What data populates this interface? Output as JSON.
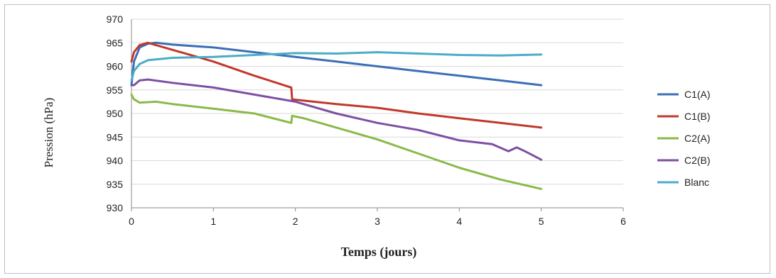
{
  "chart_data": {
    "type": "line",
    "title": "",
    "xlabel": "Temps (jours)",
    "ylabel": "Pression (hPa)",
    "xlim": [
      0,
      6
    ],
    "ylim": [
      930,
      970
    ],
    "xticks": [
      "0",
      "1",
      "2",
      "3",
      "4",
      "5",
      "6"
    ],
    "yticks": [
      "930",
      "935",
      "940",
      "945",
      "950",
      "955",
      "960",
      "965",
      "970"
    ],
    "grid": "horizontal",
    "legend_position": "right",
    "series": [
      {
        "name": "C1(A)",
        "color": "#3b6fb6",
        "x": [
          0,
          0.03,
          0.1,
          0.2,
          0.3,
          0.5,
          1.0,
          1.5,
          2.0,
          2.5,
          3.0,
          3.5,
          4.0,
          4.5,
          5.0
        ],
        "y": [
          956,
          961,
          964,
          964.8,
          965,
          964.6,
          964,
          963,
          962,
          961,
          960,
          959,
          958,
          957,
          956
        ]
      },
      {
        "name": "C1(B)",
        "color": "#c0392b",
        "x": [
          0,
          0.03,
          0.1,
          0.2,
          0.4,
          1.0,
          1.5,
          1.95,
          1.96,
          2.5,
          3.0,
          3.5,
          4.0,
          4.5,
          5.0
        ],
        "y": [
          961,
          963,
          964.5,
          965,
          964,
          961,
          958,
          955.5,
          953,
          952,
          951.2,
          950,
          949,
          948,
          947
        ]
      },
      {
        "name": "C2(A)",
        "color": "#8ab94a",
        "x": [
          0,
          0.03,
          0.1,
          0.3,
          0.5,
          1.0,
          1.5,
          1.95,
          1.96,
          2.1,
          2.5,
          3.0,
          3.5,
          4.0,
          4.5,
          5.0
        ],
        "y": [
          954,
          953,
          952.3,
          952.5,
          952,
          951,
          950,
          948,
          949.5,
          949,
          947,
          944.5,
          941.5,
          938.5,
          936,
          934
        ]
      },
      {
        "name": "C2(B)",
        "color": "#7d4fa3",
        "x": [
          0,
          0.03,
          0.1,
          0.2,
          0.5,
          1.0,
          1.5,
          2.0,
          2.5,
          3.0,
          3.5,
          4.0,
          4.4,
          4.6,
          4.7,
          4.8,
          5.0
        ],
        "y": [
          956,
          956,
          957,
          957.2,
          956.5,
          955.5,
          954,
          952.5,
          950,
          948,
          946.5,
          944.3,
          943.5,
          942,
          942.8,
          942,
          940.2
        ]
      },
      {
        "name": "Blanc",
        "color": "#4bacc6",
        "x": [
          0,
          0.03,
          0.1,
          0.2,
          0.5,
          1.0,
          1.5,
          2.0,
          2.5,
          3.0,
          3.5,
          4.0,
          4.5,
          5.0
        ],
        "y": [
          957,
          959,
          960.5,
          961.3,
          961.8,
          962,
          962.4,
          962.8,
          962.7,
          963,
          962.7,
          962.4,
          962.3,
          962.5
        ]
      }
    ]
  }
}
